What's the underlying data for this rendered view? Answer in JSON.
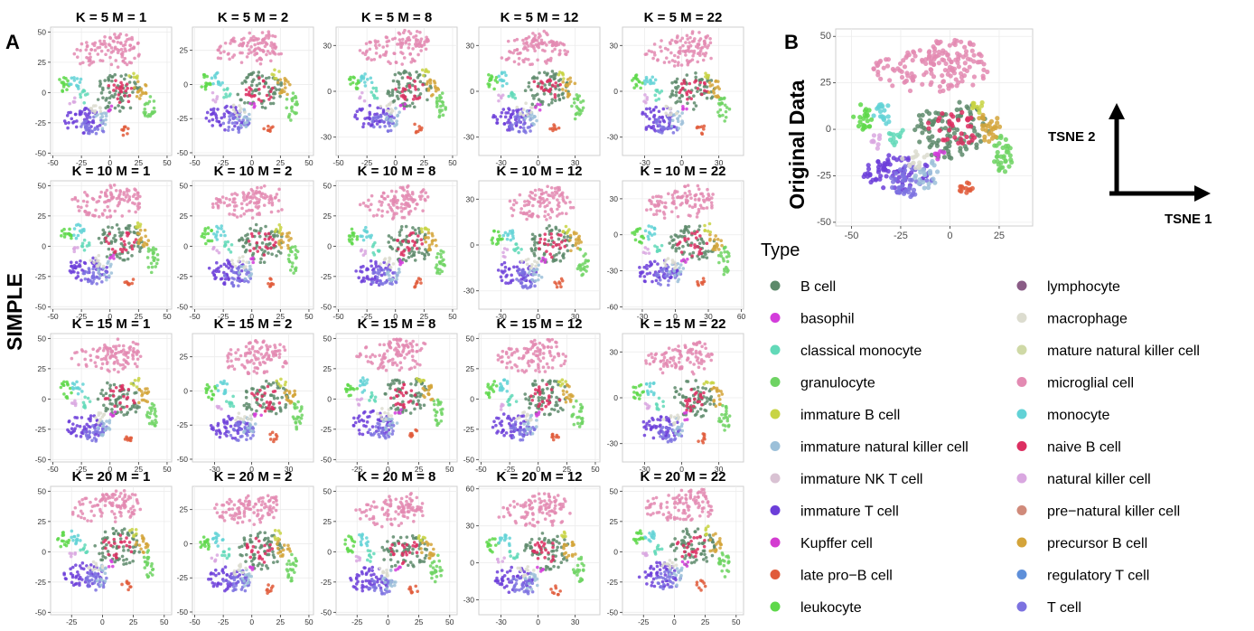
{
  "labels": {
    "panel_a": "A",
    "panel_b": "B",
    "simple": "SIMPLE",
    "original": "Original Data",
    "tsne1": "TSNE 1",
    "tsne2": "TSNE 2",
    "legend_title": "Type"
  },
  "legend": [
    {
      "name": "B cell",
      "color": "#5d8a6b"
    },
    {
      "name": "basophil",
      "color": "#d33cdb"
    },
    {
      "name": "classical monocyte",
      "color": "#62d9b8"
    },
    {
      "name": "granulocyte",
      "color": "#6ed363"
    },
    {
      "name": "immature B cell",
      "color": "#c8d444"
    },
    {
      "name": "immature natural killer cell",
      "color": "#9cc0d9"
    },
    {
      "name": "immature NK T cell",
      "color": "#d9c2d3"
    },
    {
      "name": "immature T cell",
      "color": "#6c3ed9"
    },
    {
      "name": "Kupffer cell",
      "color": "#d33cd0"
    },
    {
      "name": "late pro−B cell",
      "color": "#e05a3a"
    },
    {
      "name": "leukocyte",
      "color": "#5ed84a"
    },
    {
      "name": "lymphocyte",
      "color": "#8a5c86"
    },
    {
      "name": "macrophage",
      "color": "#dcdccf"
    },
    {
      "name": "mature natural killer cell",
      "color": "#cfd9a6"
    },
    {
      "name": "microglial cell",
      "color": "#e38ab2"
    },
    {
      "name": "monocyte",
      "color": "#62d2d6"
    },
    {
      "name": "naive B cell",
      "color": "#dc2f61"
    },
    {
      "name": "natural killer cell",
      "color": "#d9a7e0"
    },
    {
      "name": "pre−natural killer cell",
      "color": "#d08a7a"
    },
    {
      "name": "precursor B cell",
      "color": "#d4a43a"
    },
    {
      "name": "regulatory T cell",
      "color": "#5e8fd9"
    },
    {
      "name": "T cell",
      "color": "#7c72e0"
    }
  ],
  "chart_data": [
    {
      "type": "scatter",
      "title": "K = 5 M = 1",
      "xticks": [
        -50,
        -25,
        0,
        25,
        50
      ],
      "yticks": [
        -50,
        -25,
        0,
        25,
        50
      ],
      "xlim": [
        -52,
        54
      ],
      "ylim": [
        -52,
        54
      ]
    },
    {
      "type": "scatter",
      "title": "K = 5 M = 2",
      "xticks": [
        -50,
        -25,
        0,
        25,
        50
      ],
      "yticks": [
        -50,
        -25,
        0,
        25
      ],
      "xlim": [
        -52,
        54
      ],
      "ylim": [
        -52,
        42
      ]
    },
    {
      "type": "scatter",
      "title": "K = 5 M = 8",
      "xticks": [
        -50,
        -25,
        0,
        25,
        50
      ],
      "yticks": [
        -30,
        0,
        30
      ],
      "xlim": [
        -52,
        54
      ],
      "ylim": [
        -42,
        42
      ]
    },
    {
      "type": "scatter",
      "title": "K = 5 M = 12",
      "xticks": [
        -30,
        0,
        30
      ],
      "yticks": [
        -30,
        0,
        30
      ],
      "xlim": [
        -48,
        50
      ],
      "ylim": [
        -42,
        42
      ]
    },
    {
      "type": "scatter",
      "title": "K = 5 M = 22",
      "xticks": [
        -30,
        0,
        30
      ],
      "yticks": [
        -30,
        0,
        30
      ],
      "xlim": [
        -48,
        50
      ],
      "ylim": [
        -42,
        42
      ]
    },
    {
      "type": "scatter",
      "title": "K = 10 M = 1",
      "xticks": [
        -50,
        -25,
        0,
        25,
        50
      ],
      "yticks": [
        -50,
        -25,
        0,
        25,
        50
      ],
      "xlim": [
        -52,
        54
      ],
      "ylim": [
        -52,
        54
      ]
    },
    {
      "type": "scatter",
      "title": "K = 10 M = 2",
      "xticks": [
        -50,
        -25,
        0,
        25,
        50
      ],
      "yticks": [
        -50,
        -25,
        0,
        25,
        50
      ],
      "xlim": [
        -52,
        54
      ],
      "ylim": [
        -52,
        54
      ]
    },
    {
      "type": "scatter",
      "title": "K = 10 M = 8",
      "xticks": [
        -50,
        -25,
        0,
        25,
        50
      ],
      "yticks": [
        -50,
        -25,
        0,
        25,
        50
      ],
      "xlim": [
        -52,
        54
      ],
      "ylim": [
        -52,
        54
      ]
    },
    {
      "type": "scatter",
      "title": "K = 10 M = 12",
      "xticks": [
        -30,
        0,
        30
      ],
      "yticks": [
        -30,
        0,
        30
      ],
      "xlim": [
        -48,
        50
      ],
      "ylim": [
        -42,
        42
      ]
    },
    {
      "type": "scatter",
      "title": "K = 10 M = 22",
      "xticks": [
        -30,
        0,
        30,
        60
      ],
      "yticks": [
        -60,
        -30,
        0,
        30
      ],
      "xlim": [
        -48,
        62
      ],
      "ylim": [
        -62,
        45
      ]
    },
    {
      "type": "scatter",
      "title": "K = 15 M = 1",
      "xticks": [
        -50,
        -25,
        0,
        25,
        50
      ],
      "yticks": [
        -50,
        -25,
        0,
        25,
        50
      ],
      "xlim": [
        -52,
        54
      ],
      "ylim": [
        -52,
        54
      ]
    },
    {
      "type": "scatter",
      "title": "K = 15 M = 2",
      "xticks": [
        -30,
        0,
        30
      ],
      "yticks": [
        -50,
        -25,
        0,
        25
      ],
      "xlim": [
        -48,
        50
      ],
      "ylim": [
        -52,
        42
      ]
    },
    {
      "type": "scatter",
      "title": "K = 15 M = 8",
      "xticks": [
        -25,
        0,
        25,
        50
      ],
      "yticks": [
        -50,
        -25,
        0,
        25,
        50
      ],
      "xlim": [
        -42,
        56
      ],
      "ylim": [
        -52,
        54
      ]
    },
    {
      "type": "scatter",
      "title": "K = 15 M = 12",
      "xticks": [
        -50,
        -25,
        0,
        25,
        50
      ],
      "yticks": [
        -50,
        -25,
        0,
        25,
        50
      ],
      "xlim": [
        -52,
        54
      ],
      "ylim": [
        -52,
        54
      ]
    },
    {
      "type": "scatter",
      "title": "K = 15 M = 22",
      "xticks": [
        -30,
        0,
        30
      ],
      "yticks": [
        -30,
        0,
        30
      ],
      "xlim": [
        -48,
        50
      ],
      "ylim": [
        -42,
        42
      ]
    },
    {
      "type": "scatter",
      "title": "K = 20 M = 1",
      "xticks": [
        -25,
        0,
        25,
        50
      ],
      "yticks": [
        -50,
        -25,
        0,
        25,
        50
      ],
      "xlim": [
        -42,
        56
      ],
      "ylim": [
        -52,
        54
      ]
    },
    {
      "type": "scatter",
      "title": "K = 20 M = 2",
      "xticks": [
        -50,
        -25,
        0,
        25,
        50
      ],
      "yticks": [
        -50,
        -25,
        0,
        25
      ],
      "xlim": [
        -52,
        54
      ],
      "ylim": [
        -52,
        42
      ]
    },
    {
      "type": "scatter",
      "title": "K = 20 M = 8",
      "xticks": [
        -25,
        0,
        25,
        50
      ],
      "yticks": [
        -50,
        -25,
        0,
        25,
        50
      ],
      "xlim": [
        -42,
        56
      ],
      "ylim": [
        -52,
        54
      ]
    },
    {
      "type": "scatter",
      "title": "K = 20 M = 12",
      "xticks": [
        -30,
        0,
        30
      ],
      "yticks": [
        -30,
        0,
        30,
        60
      ],
      "xlim": [
        -48,
        50
      ],
      "ylim": [
        -42,
        62
      ]
    },
    {
      "type": "scatter",
      "title": "K = 20 M = 22",
      "xticks": [
        -25,
        0,
        25,
        50
      ],
      "yticks": [
        -50,
        -25,
        0,
        25,
        50
      ],
      "xlim": [
        -42,
        56
      ],
      "ylim": [
        -52,
        54
      ]
    },
    {
      "type": "scatter",
      "title": "",
      "xticks": [
        -50,
        -25,
        0,
        25
      ],
      "yticks": [
        -50,
        -25,
        0,
        25,
        50
      ],
      "xlim": [
        -58,
        42
      ],
      "ylim": [
        -52,
        54
      ]
    }
  ]
}
